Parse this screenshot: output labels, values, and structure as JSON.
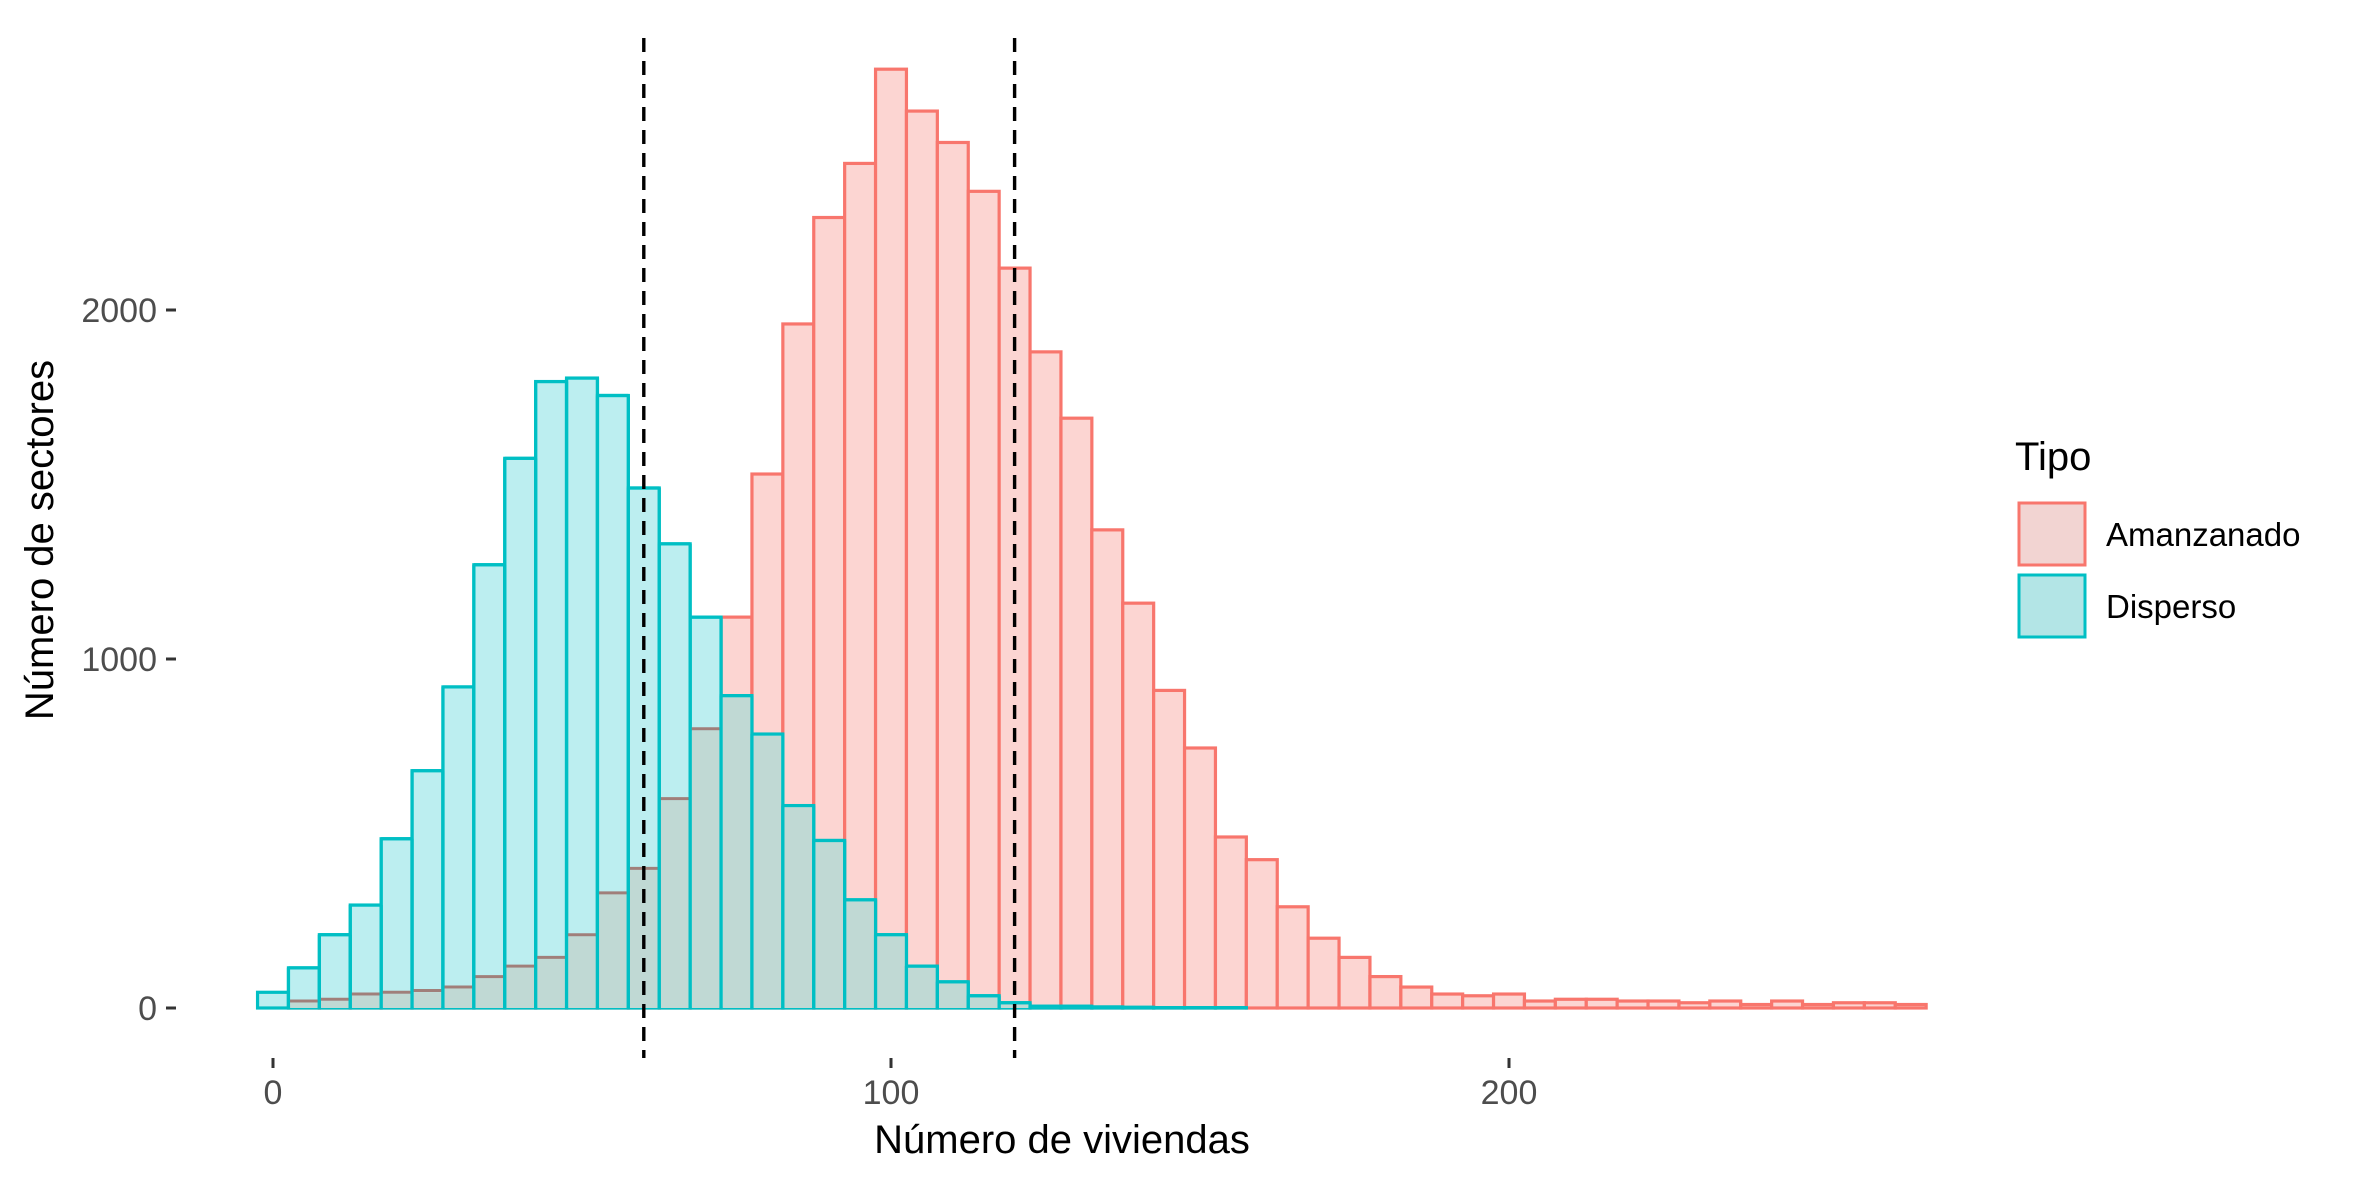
{
  "chart_data": {
    "type": "histogram",
    "xlabel": "Número de viviendas",
    "ylabel": "Número de sectores",
    "xlim": [
      -3,
      258
    ],
    "ylim": [
      -40,
      2770
    ],
    "x_ticks": [
      0,
      100,
      200
    ],
    "x_tick_labels": [
      "0",
      "100",
      "200"
    ],
    "y_ticks": [
      0,
      1000,
      2000
    ],
    "y_tick_labels": [
      "0",
      "1000",
      "2000"
    ],
    "bin_start": -2.5,
    "bin_width": 5,
    "grid": false,
    "reference_lines": [
      60,
      120
    ],
    "legend": {
      "title": "Tipo",
      "position": "right",
      "entries": [
        "Amanzanado",
        "Disperso"
      ]
    },
    "series": [
      {
        "name": "Amanzanado",
        "color": "#F8766D",
        "fill": "#FCD5D2",
        "values": [
          0,
          20,
          25,
          40,
          45,
          50,
          60,
          90,
          120,
          145,
          210,
          330,
          400,
          600,
          800,
          1120,
          1530,
          1960,
          2265,
          2420,
          2690,
          2570,
          2480,
          2340,
          2120,
          1880,
          1690,
          1370,
          1160,
          910,
          745,
          490,
          425,
          290,
          200,
          145,
          90,
          60,
          40,
          35,
          40,
          20,
          25,
          25,
          20,
          20,
          15,
          20,
          10,
          20,
          10,
          15,
          15,
          10
        ]
      },
      {
        "name": "Disperso",
        "color": "#00BFC4",
        "fill": "#BCEEF0",
        "values": [
          45,
          115,
          210,
          295,
          485,
          680,
          920,
          1270,
          1575,
          1795,
          1805,
          1755,
          1490,
          1330,
          1120,
          895,
          785,
          580,
          480,
          310,
          210,
          120,
          75,
          35,
          15,
          5,
          5,
          3,
          2,
          1,
          1,
          1,
          0,
          0,
          0,
          0,
          0,
          0,
          0,
          0,
          0,
          0,
          0,
          0,
          0,
          0,
          0,
          0,
          0,
          0,
          0,
          0,
          0,
          0
        ]
      }
    ]
  }
}
